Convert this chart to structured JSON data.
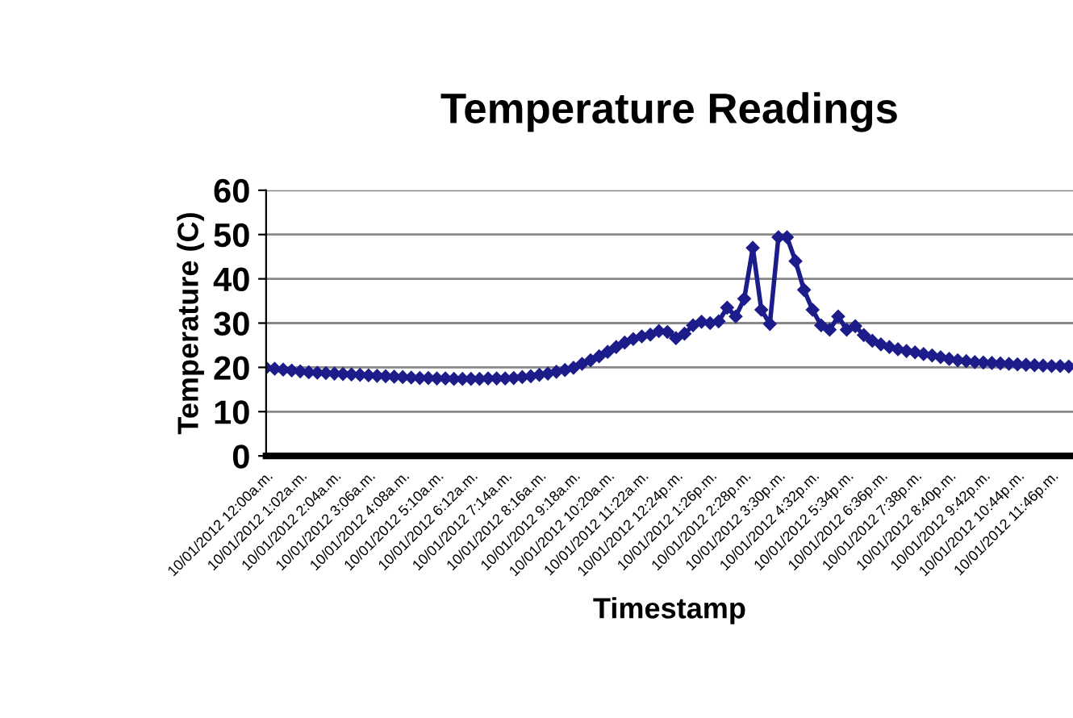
{
  "chart_data": {
    "type": "line",
    "title": "Temperature Readings",
    "xlabel": "Timestamp",
    "ylabel": "Temperature (C)",
    "categories": [
      "10/01/2012 12:00a.m.",
      null,
      null,
      null,
      "10/01/2012 1:02a.m.",
      null,
      null,
      null,
      "10/01/2012 2:04a.m.",
      null,
      null,
      null,
      "10/01/2012 3:06a.m.",
      null,
      null,
      null,
      "10/01/2012 4:08a.m.",
      null,
      null,
      null,
      "10/01/2012 5:10a.m.",
      null,
      null,
      null,
      "10/01/2012 6:12a.m.",
      null,
      null,
      null,
      "10/01/2012 7:14a.m.",
      null,
      null,
      null,
      "10/01/2012 8:16a.m.",
      null,
      null,
      null,
      "10/01/2012 9:18a.m.",
      null,
      null,
      null,
      "10/01/2012 10:20a.m.",
      null,
      null,
      null,
      "10/01/2012 11:22a.m.",
      null,
      null,
      null,
      "10/01/2012 12:24p.m.",
      null,
      null,
      null,
      "10/01/2012 1:26p.m.",
      null,
      null,
      null,
      "10/01/2012 2:28p.m.",
      null,
      null,
      null,
      "10/01/2012 3:30p.m.",
      null,
      null,
      null,
      "10/01/2012 4:32p.m.",
      null,
      null,
      null,
      "10/01/2012 5:34p.m.",
      null,
      null,
      null,
      "10/01/2012 6:36p.m.",
      null,
      null,
      null,
      "10/01/2012 7:38p.m.",
      null,
      null,
      null,
      "10/01/2012 8:40p.m.",
      null,
      null,
      null,
      "10/01/2012 9:42p.m.",
      null,
      null,
      null,
      "10/01/2012 10:44p.m.",
      null,
      null,
      null,
      "10/01/2012 11:46p.m.",
      null,
      null
    ],
    "series": [
      {
        "color": "#1c1c8a",
        "values": [
          19.9,
          19.7,
          19.5,
          19.3,
          19.1,
          18.9,
          18.8,
          18.7,
          18.6,
          18.5,
          18.4,
          18.3,
          18.2,
          18.1,
          18.0,
          17.9,
          17.8,
          17.7,
          17.6,
          17.6,
          17.5,
          17.5,
          17.4,
          17.4,
          17.4,
          17.4,
          17.5,
          17.5,
          17.5,
          17.6,
          17.8,
          18.0,
          18.3,
          18.6,
          19.0,
          19.4,
          19.9,
          20.8,
          21.6,
          22.5,
          23.5,
          24.6,
          25.6,
          26.4,
          27.0,
          27.4,
          28.2,
          28.0,
          26.6,
          27.6,
          29.5,
          30.3,
          30.0,
          30.4,
          33.5,
          31.5,
          35.5,
          47,
          33,
          29.8,
          49.4,
          49.4,
          44,
          37.5,
          33,
          29.5,
          28.5,
          31.5,
          28.5,
          29.3,
          27.3,
          26.0,
          25.2,
          24.6,
          24.1,
          23.7,
          23.4,
          23.0,
          22.7,
          22.3,
          21.9,
          21.6,
          21.4,
          21.2,
          21.1,
          21.0,
          20.9,
          20.8,
          20.7,
          20.6,
          20.5,
          20.4,
          20.3,
          20.3,
          20.2
        ]
      }
    ],
    "ylim": [
      0,
      60
    ],
    "yticks": [
      0,
      10,
      20,
      30,
      40,
      50,
      60
    ],
    "grid": "y",
    "marker": "diamond",
    "line_style": "solid"
  }
}
